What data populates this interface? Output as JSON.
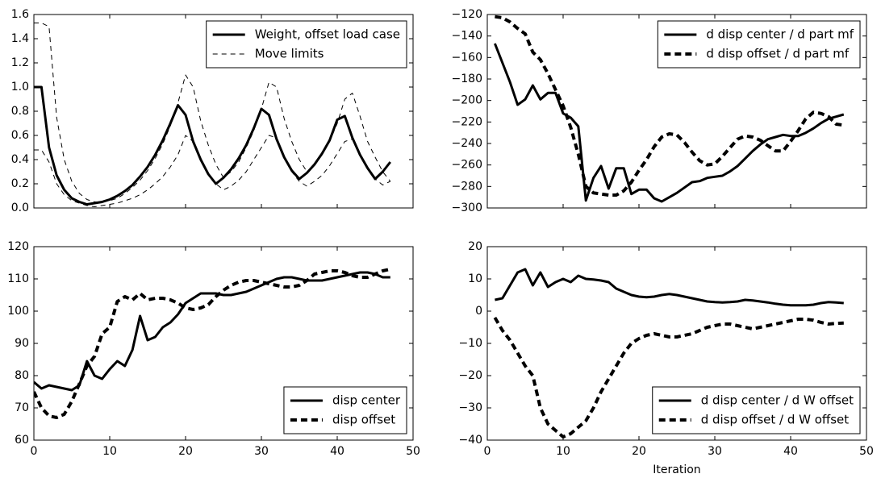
{
  "chart_data": [
    {
      "type": "line",
      "legend": "upper right",
      "show_xtick_labels": false,
      "xlim": [
        0,
        50
      ],
      "xticks": [
        0,
        10,
        20,
        30,
        40,
        50
      ],
      "ylim": [
        0,
        1.6
      ],
      "yticks": [
        {
          "value": 0,
          "label": "0.0"
        },
        {
          "value": 0.2,
          "label": "0.2"
        },
        {
          "value": 0.4,
          "label": "0.4"
        },
        {
          "value": 0.6,
          "label": "0.6"
        },
        {
          "value": 0.8,
          "label": "0.8"
        },
        {
          "value": 1.0,
          "label": "1.0"
        },
        {
          "value": 1.2,
          "label": "1.2"
        },
        {
          "value": 1.4,
          "label": "1.4"
        },
        {
          "value": 1.6,
          "label": "1.6"
        }
      ],
      "x": [
        0,
        1,
        2,
        3,
        4,
        5,
        6,
        7,
        8,
        9,
        10,
        11,
        12,
        13,
        14,
        15,
        16,
        17,
        18,
        19,
        20,
        21,
        22,
        23,
        24,
        25,
        26,
        27,
        28,
        29,
        30,
        31,
        32,
        33,
        34,
        35,
        36,
        37,
        38,
        39,
        40,
        41,
        42,
        43,
        44,
        45,
        46,
        47
      ],
      "series": [
        {
          "name": "Weight, offset load case",
          "color": "#000000",
          "linestyle": "solid",
          "linewidth": 3,
          "values": [
            1.0,
            1.0,
            0.5,
            0.27,
            0.15,
            0.08,
            0.05,
            0.03,
            0.04,
            0.05,
            0.07,
            0.1,
            0.14,
            0.19,
            0.26,
            0.34,
            0.44,
            0.56,
            0.7,
            0.85,
            0.77,
            0.55,
            0.4,
            0.28,
            0.2,
            0.25,
            0.32,
            0.41,
            0.52,
            0.66,
            0.82,
            0.77,
            0.57,
            0.42,
            0.31,
            0.24,
            0.29,
            0.36,
            0.45,
            0.56,
            0.73,
            0.76,
            0.58,
            0.44,
            0.33,
            0.24,
            0.3,
            0.38
          ]
        },
        {
          "name": "Move limits",
          "color": "#000000",
          "linestyle": "dashed",
          "linewidth": 1,
          "values": [
            1.53,
            1.53,
            1.5,
            0.75,
            0.4,
            0.22,
            0.12,
            0.07,
            0.05,
            0.05,
            0.06,
            0.08,
            0.12,
            0.17,
            0.23,
            0.31,
            0.41,
            0.53,
            0.68,
            0.87,
            1.1,
            1.0,
            0.72,
            0.52,
            0.36,
            0.25,
            0.3,
            0.38,
            0.5,
            0.64,
            0.82,
            1.04,
            1.0,
            0.74,
            0.55,
            0.4,
            0.3,
            0.35,
            0.44,
            0.55,
            0.7,
            0.9,
            0.95,
            0.76,
            0.55,
            0.42,
            0.3,
            0.22
          ],
          "lower": [
            0.48,
            0.48,
            0.38,
            0.2,
            0.11,
            0.06,
            0.04,
            0.02,
            0.01,
            0.02,
            0.03,
            0.04,
            0.06,
            0.08,
            0.11,
            0.15,
            0.2,
            0.26,
            0.34,
            0.44,
            0.6,
            0.55,
            0.4,
            0.28,
            0.2,
            0.15,
            0.18,
            0.23,
            0.3,
            0.4,
            0.5,
            0.6,
            0.58,
            0.42,
            0.3,
            0.22,
            0.18,
            0.22,
            0.27,
            0.35,
            0.45,
            0.55,
            0.57,
            0.44,
            0.33,
            0.24,
            0.19,
            0.22
          ]
        }
      ]
    },
    {
      "type": "line",
      "legend": "upper right",
      "show_xtick_labels": false,
      "xlim": [
        0,
        50
      ],
      "xticks": [
        0,
        10,
        20,
        30,
        40,
        50
      ],
      "ylim": [
        -300,
        -120
      ],
      "yticks": [
        {
          "value": -300,
          "label": "−300"
        },
        {
          "value": -280,
          "label": "−280"
        },
        {
          "value": -260,
          "label": "−260"
        },
        {
          "value": -240,
          "label": "−240"
        },
        {
          "value": -220,
          "label": "−220"
        },
        {
          "value": -200,
          "label": "−200"
        },
        {
          "value": -180,
          "label": "−180"
        },
        {
          "value": -160,
          "label": "−160"
        },
        {
          "value": -140,
          "label": "−140"
        },
        {
          "value": -120,
          "label": "−120"
        }
      ],
      "x": [
        1,
        2,
        3,
        4,
        5,
        6,
        7,
        8,
        9,
        10,
        11,
        12,
        13,
        14,
        15,
        16,
        17,
        18,
        19,
        20,
        21,
        22,
        23,
        24,
        25,
        26,
        27,
        28,
        29,
        30,
        31,
        32,
        33,
        34,
        35,
        36,
        37,
        38,
        39,
        40,
        41,
        42,
        43,
        44,
        45,
        46,
        47
      ],
      "series": [
        {
          "name": "d disp center / d part mf",
          "color": "#000000",
          "linestyle": "solid",
          "linewidth": 3,
          "values": [
            -147,
            -165,
            -183,
            -204,
            -199,
            -186,
            -199,
            -193,
            -193,
            -212,
            -216,
            -224,
            -293,
            -272,
            -261,
            -282,
            -263,
            -263,
            -287,
            -283,
            -283,
            -291,
            -294,
            -290,
            -286,
            -281,
            -276,
            -275,
            -272,
            -271,
            -270,
            -266,
            -261,
            -254,
            -247,
            -241,
            -236,
            -234,
            -232,
            -233,
            -233,
            -230,
            -226,
            -221,
            -217,
            -215,
            -213
          ]
        },
        {
          "name": "d disp offset / d part mf",
          "color": "#000000",
          "linestyle": "dotted",
          "linewidth": 4,
          "values": [
            -122,
            -123,
            -127,
            -133,
            -138,
            -155,
            -162,
            -175,
            -190,
            -205,
            -225,
            -250,
            -280,
            -286,
            -287,
            -288,
            -288,
            -284,
            -276,
            -265,
            -255,
            -243,
            -234,
            -231,
            -232,
            -239,
            -248,
            -256,
            -260,
            -259,
            -252,
            -244,
            -236,
            -233,
            -234,
            -237,
            -242,
            -247,
            -247,
            -238,
            -228,
            -217,
            -211,
            -212,
            -215,
            -222,
            -223
          ]
        }
      ]
    },
    {
      "type": "line",
      "legend": "lower right",
      "show_xtick_labels": true,
      "xlim": [
        0,
        50
      ],
      "xticks": [
        0,
        10,
        20,
        30,
        40,
        50
      ],
      "ylim": [
        60,
        120
      ],
      "yticks": [
        60,
        70,
        80,
        90,
        100,
        110,
        120
      ],
      "x": [
        0,
        1,
        2,
        3,
        4,
        5,
        6,
        7,
        8,
        9,
        10,
        11,
        12,
        13,
        14,
        15,
        16,
        17,
        18,
        19,
        20,
        21,
        22,
        23,
        24,
        25,
        26,
        27,
        28,
        29,
        30,
        31,
        32,
        33,
        34,
        35,
        36,
        37,
        38,
        39,
        40,
        41,
        42,
        43,
        44,
        45,
        46,
        47
      ],
      "series": [
        {
          "name": "disp center",
          "color": "#000000",
          "linestyle": "solid",
          "linewidth": 3,
          "values": [
            78,
            76,
            77,
            76.5,
            76,
            75.5,
            77,
            84.5,
            80,
            79,
            82,
            84.5,
            83,
            88,
            98.5,
            91,
            92,
            95,
            96.5,
            99,
            102.5,
            104,
            105.5,
            105.5,
            105.5,
            105,
            105,
            105.5,
            106,
            107,
            108,
            109,
            110,
            110.5,
            110.5,
            110,
            109.5,
            109.5,
            109.5,
            110,
            110.5,
            111,
            111.5,
            112,
            112,
            111.5,
            110.5,
            110.5
          ]
        },
        {
          "name": "disp offset",
          "color": "#000000",
          "linestyle": "dotted",
          "linewidth": 4,
          "values": [
            75,
            70,
            67.5,
            67,
            68,
            72,
            77.5,
            83,
            86,
            93,
            95,
            103,
            104.5,
            103.5,
            105.5,
            103.5,
            104,
            104,
            103.5,
            102.5,
            101,
            100.5,
            101,
            102,
            104.5,
            106.5,
            108,
            109,
            109.5,
            109.5,
            109,
            108.5,
            108,
            107.5,
            107.5,
            108,
            109.5,
            111.5,
            112,
            112.5,
            112.5,
            112,
            111,
            110.5,
            110.5,
            111.5,
            112.5,
            113
          ]
        }
      ]
    },
    {
      "type": "line",
      "legend": "lower right",
      "show_xtick_labels": true,
      "xlabel": "Iteration",
      "xlim": [
        0,
        50
      ],
      "xticks": [
        0,
        10,
        20,
        30,
        40,
        50
      ],
      "ylim": [
        -40,
        20
      ],
      "yticks": [
        {
          "value": -40,
          "label": "−40"
        },
        {
          "value": -30,
          "label": "−30"
        },
        {
          "value": -20,
          "label": "−20"
        },
        {
          "value": -10,
          "label": "−10"
        },
        0,
        10,
        20
      ],
      "x": [
        1,
        2,
        3,
        4,
        5,
        6,
        7,
        8,
        9,
        10,
        11,
        12,
        13,
        14,
        15,
        16,
        17,
        18,
        19,
        20,
        21,
        22,
        23,
        24,
        25,
        26,
        27,
        28,
        29,
        30,
        31,
        32,
        33,
        34,
        35,
        36,
        37,
        38,
        39,
        40,
        41,
        42,
        43,
        44,
        45,
        46,
        47
      ],
      "series": [
        {
          "name": "d disp center / d W offset",
          "color": "#000000",
          "linestyle": "solid",
          "linewidth": 3,
          "values": [
            3.5,
            4,
            8,
            12,
            13,
            8,
            12,
            7.5,
            9,
            10,
            9,
            11,
            10,
            9.8,
            9.5,
            9,
            7,
            6,
            5,
            4.5,
            4.3,
            4.5,
            5,
            5.3,
            5,
            4.5,
            4,
            3.5,
            3,
            2.8,
            2.7,
            2.8,
            3,
            3.5,
            3.3,
            3,
            2.7,
            2.3,
            2,
            1.8,
            1.8,
            1.8,
            2,
            2.5,
            2.8,
            2.7,
            2.5
          ]
        },
        {
          "name": "d disp offset / d W offset",
          "color": "#000000",
          "linestyle": "dotted",
          "linewidth": 4,
          "values": [
            -2,
            -6,
            -9,
            -13,
            -17,
            -20,
            -30,
            -35,
            -37,
            -39,
            -38,
            -36,
            -34,
            -30,
            -25,
            -21,
            -17,
            -13,
            -10,
            -8.5,
            -7.5,
            -7,
            -7.5,
            -8,
            -8,
            -7.5,
            -7,
            -6,
            -5,
            -4.5,
            -4,
            -4,
            -4.5,
            -5,
            -5.5,
            -5,
            -4.5,
            -4,
            -3.5,
            -3,
            -2.5,
            -2.5,
            -2.8,
            -3.5,
            -4,
            -3.8,
            -3.7
          ]
        }
      ]
    }
  ]
}
